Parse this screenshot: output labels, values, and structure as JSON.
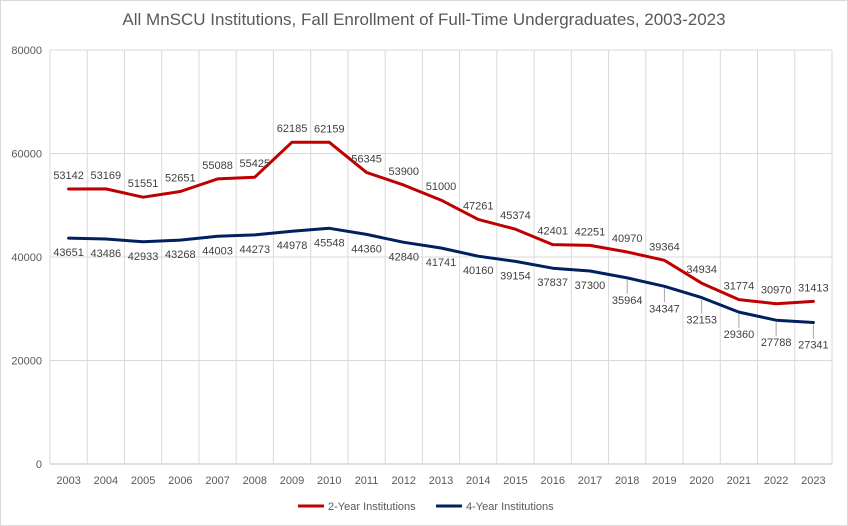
{
  "chart_data": {
    "type": "line",
    "title": "All MnSCU Institutions, Fall Enrollment of Full-Time Undergraduates, 2003-2023",
    "xlabel": "",
    "ylabel": "",
    "ylim": [
      0,
      80000
    ],
    "yticks": [
      0,
      20000,
      40000,
      60000,
      80000
    ],
    "grid": true,
    "legend_position": "bottom",
    "categories": [
      "2003",
      "2004",
      "2005",
      "2006",
      "2007",
      "2008",
      "2009",
      "2010",
      "2011",
      "2012",
      "2013",
      "2014",
      "2015",
      "2016",
      "2017",
      "2018",
      "2019",
      "2020",
      "2021",
      "2022",
      "2023"
    ],
    "series": [
      {
        "name": "2-Year Institutions",
        "color": "#c00000",
        "values": [
          53142,
          53169,
          51551,
          52651,
          55088,
          55425,
          62185,
          62159,
          56345,
          53900,
          51000,
          47261,
          45374,
          42401,
          42251,
          40970,
          39364,
          34934,
          31774,
          30970,
          31413
        ]
      },
      {
        "name": "4-Year Institutions",
        "color": "#002060",
        "values": [
          43651,
          43486,
          42933,
          43268,
          44003,
          44273,
          44978,
          45548,
          44360,
          42840,
          41741,
          40160,
          39154,
          37837,
          37300,
          35964,
          34347,
          32153,
          29360,
          27788,
          27341
        ]
      }
    ]
  }
}
